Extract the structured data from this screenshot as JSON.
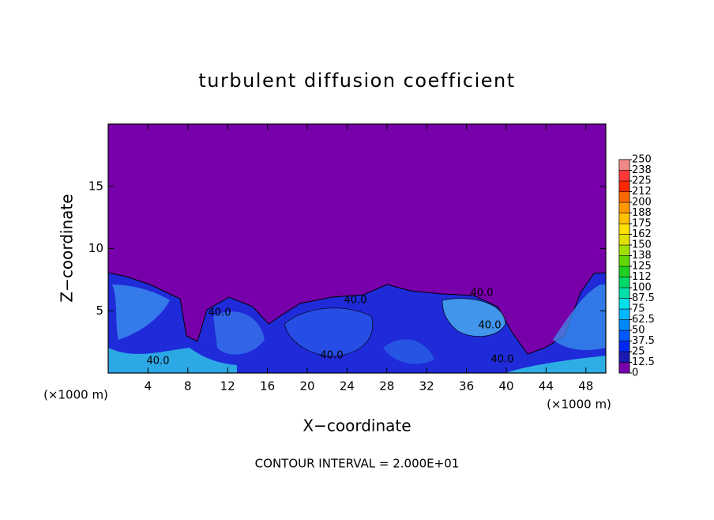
{
  "chart_data": {
    "type": "contour",
    "title": "turbulent diffusion coefficient",
    "x_label": "X−coordinate",
    "y_label": "Z−coordinate",
    "x_unit_label": "(×1000 m)",
    "footer": "CONTOUR INTERVAL = 2.000E+01",
    "xlim": [
      0,
      50
    ],
    "ylim": [
      0,
      20
    ],
    "xticks": [
      4,
      8,
      12,
      16,
      20,
      24,
      28,
      32,
      36,
      40,
      44,
      48
    ],
    "yticks": [
      5,
      10,
      15
    ],
    "clim": [
      0,
      250
    ],
    "cticks": [
      0,
      12.5,
      25,
      37.5,
      50,
      62.5,
      75,
      87.5,
      100,
      {
        "value": 112.5,
        "label": "112"
      },
      125,
      {
        "value": 137.5,
        "label": "138"
      },
      150,
      {
        "value": 162.5,
        "label": "162"
      },
      175,
      {
        "value": 187.5,
        "label": "188"
      },
      200,
      {
        "value": 212.5,
        "label": "212"
      },
      225,
      {
        "value": 237.5,
        "label": "238"
      },
      250
    ],
    "colorbar_colors": [
      "#7800aa",
      "#1a1ab4",
      "#0028f0",
      "#0058ff",
      "#0088ff",
      "#00b8ff",
      "#00e0e8",
      "#00e0a8",
      "#00d868",
      "#20d020",
      "#60d800",
      "#a0e000",
      "#e0e000",
      "#ffe000",
      "#ffc000",
      "#ff9800",
      "#ff6800",
      "#ff2800",
      "#ff3838",
      "#f08888"
    ],
    "contour_labels": [
      "40.0",
      "40.0",
      "40.0",
      "40.0",
      "40.0",
      "40.0",
      "40.0"
    ]
  }
}
